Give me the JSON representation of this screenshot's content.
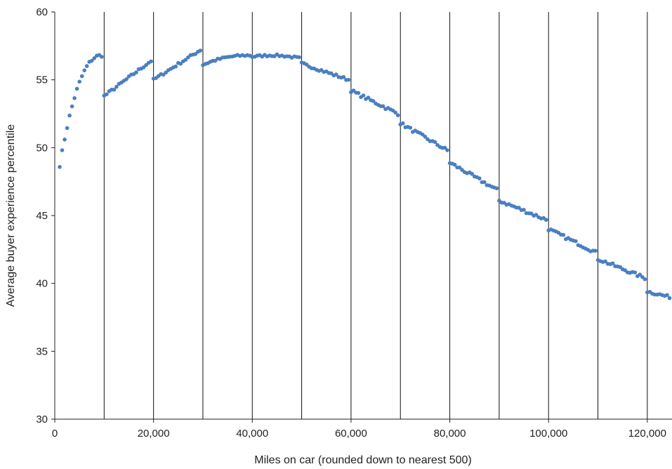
{
  "chart_data": {
    "type": "scatter",
    "xlabel": "Miles on car (rounded down to nearest 500)",
    "ylabel": "Average buyer experience percentile",
    "xlim": [
      0,
      125000
    ],
    "ylim": [
      30,
      60
    ],
    "xticks": [
      {
        "value": 0,
        "label": "0"
      },
      {
        "value": 20000,
        "label": "20,000"
      },
      {
        "value": 40000,
        "label": "40,000"
      },
      {
        "value": 60000,
        "label": "60,000"
      },
      {
        "value": 80000,
        "label": "80,000"
      },
      {
        "value": 100000,
        "label": "100,000"
      },
      {
        "value": 120000,
        "label": "120,000"
      }
    ],
    "yticks": [
      {
        "value": 30,
        "label": "30"
      },
      {
        "value": 35,
        "label": "35"
      },
      {
        "value": 40,
        "label": "40"
      },
      {
        "value": 45,
        "label": "45"
      },
      {
        "value": 50,
        "label": "50"
      },
      {
        "value": 55,
        "label": "55"
      },
      {
        "value": 60,
        "label": "60"
      }
    ],
    "vertical_lines": [
      10000,
      20000,
      30000,
      40000,
      50000,
      60000,
      70000,
      80000,
      90000,
      100000,
      110000,
      120000
    ],
    "marker_color": "#4a7fc1",
    "segments": [
      {
        "x_start": 1000,
        "x_end": 9500,
        "y_start": 48.7,
        "y_end": 56.8,
        "shape": "concave",
        "noise": 0.12
      },
      {
        "x_start": 10000,
        "x_end": 19500,
        "y_start": 53.8,
        "y_end": 56.4,
        "shape": "linear",
        "noise": 0.1
      },
      {
        "x_start": 20000,
        "x_end": 29500,
        "y_start": 55.0,
        "y_end": 57.2,
        "shape": "linear",
        "noise": 0.1
      },
      {
        "x_start": 30000,
        "x_end": 39500,
        "y_start": 56.1,
        "y_end": 56.8,
        "shape": "concave",
        "noise": 0.08
      },
      {
        "x_start": 40000,
        "x_end": 49500,
        "y_start": 56.7,
        "y_end": 56.6,
        "shape": "arch",
        "noise": 0.08
      },
      {
        "x_start": 50000,
        "x_end": 59500,
        "y_start": 56.2,
        "y_end": 55.0,
        "shape": "linear",
        "noise": 0.1
      },
      {
        "x_start": 60000,
        "x_end": 69500,
        "y_start": 54.2,
        "y_end": 52.5,
        "shape": "linear",
        "noise": 0.12
      },
      {
        "x_start": 70000,
        "x_end": 79500,
        "y_start": 51.8,
        "y_end": 49.8,
        "shape": "linear",
        "noise": 0.12
      },
      {
        "x_start": 80000,
        "x_end": 89500,
        "y_start": 48.9,
        "y_end": 46.9,
        "shape": "linear",
        "noise": 0.12
      },
      {
        "x_start": 90000,
        "x_end": 99500,
        "y_start": 46.1,
        "y_end": 44.7,
        "shape": "linear",
        "noise": 0.12
      },
      {
        "x_start": 100000,
        "x_end": 109500,
        "y_start": 44.0,
        "y_end": 42.3,
        "shape": "linear",
        "noise": 0.12
      },
      {
        "x_start": 110000,
        "x_end": 119500,
        "y_start": 41.8,
        "y_end": 40.4,
        "shape": "linear",
        "noise": 0.12
      },
      {
        "x_start": 120000,
        "x_end": 124500,
        "y_start": 39.4,
        "y_end": 39.0,
        "shape": "linear",
        "noise": 0.1
      }
    ]
  }
}
